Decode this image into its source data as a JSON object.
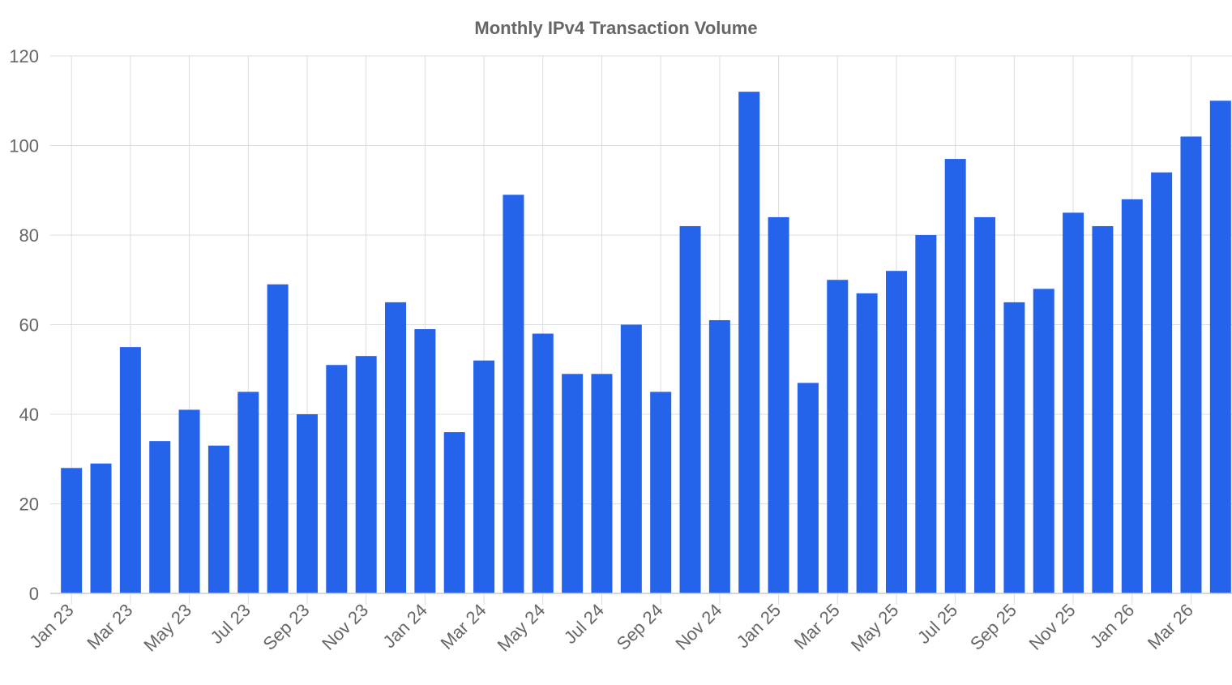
{
  "chart_data": {
    "type": "bar",
    "title": "Monthly IPv4 Transaction Volume",
    "xlabel": "",
    "ylabel": "",
    "ylim": [
      0,
      120
    ],
    "yticks": [
      0,
      20,
      40,
      60,
      80,
      100,
      120
    ],
    "grid": true,
    "legend": "none",
    "bar_color": "#2563eb",
    "categories": [
      "Jan 23",
      "Feb 23",
      "Mar 23",
      "Apr 23",
      "May 23",
      "Jun 23",
      "Jul 23",
      "Aug 23",
      "Sep 23",
      "Oct 23",
      "Nov 23",
      "Dec 23",
      "Jan 24",
      "Feb 24",
      "Mar 24",
      "Apr 24",
      "May 24",
      "Jun 24",
      "Jul 24",
      "Aug 24",
      "Sep 24",
      "Oct 24",
      "Nov 24",
      "Dec 24",
      "Jan 25",
      "Feb 25",
      "Mar 25",
      "Apr 25",
      "May 25",
      "Jun 25",
      "Jul 25",
      "Aug 25",
      "Sep 25",
      "Oct 25",
      "Nov 25",
      "Dec 25",
      "Jan 26",
      "Feb 26",
      "Mar 26",
      "Apr 26"
    ],
    "shown_x_labels": [
      "Jan 23",
      "Mar 23",
      "May 23",
      "Jul 23",
      "Sep 23",
      "Nov 23",
      "Jan 24",
      "Mar 24",
      "May 24",
      "Jul 24",
      "Sep 24",
      "Nov 24",
      "Jan 25",
      "Mar 25",
      "May 25",
      "Jul 25",
      "Sep 25",
      "Nov 25",
      "Jan 26",
      "Mar 26"
    ],
    "values": [
      28,
      29,
      55,
      34,
      41,
      33,
      45,
      69,
      40,
      51,
      53,
      65,
      59,
      36,
      52,
      89,
      58,
      49,
      49,
      60,
      45,
      82,
      61,
      112,
      84,
      47,
      70,
      67,
      72,
      80,
      97,
      84,
      65,
      68,
      85,
      82,
      88,
      94,
      102,
      110
    ]
  }
}
